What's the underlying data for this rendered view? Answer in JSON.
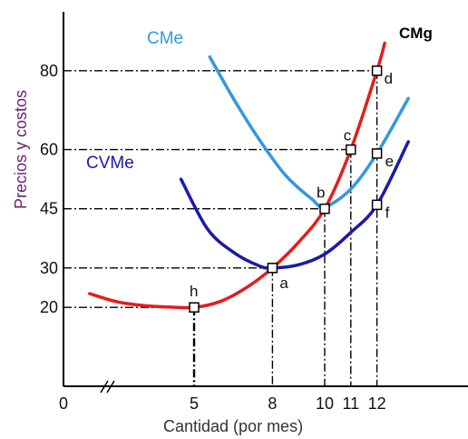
{
  "chart_data": {
    "type": "line",
    "xlabel": "Cantidad (por mes)",
    "ylabel": "Precios y costos",
    "x_ticks": [
      "0",
      "5",
      "8",
      "10",
      "11",
      "12"
    ],
    "y_ticks": [
      "20",
      "30",
      "45",
      "60",
      "80"
    ],
    "series": [
      {
        "name": "CMg",
        "color": "#e41c1c",
        "x": [
          1,
          2,
          3,
          4,
          5,
          6,
          7,
          8,
          9,
          10,
          11,
          12,
          12.3
        ],
        "y": [
          23.5,
          21.5,
          20.5,
          20.1,
          20,
          21.5,
          25,
          30,
          36.5,
          45,
          60,
          80,
          87
        ]
      },
      {
        "name": "CMe",
        "color": "#3399dd",
        "x": [
          5.6,
          6.5,
          7.5,
          8.5,
          9.5,
          10,
          11,
          12,
          13.2
        ],
        "y": [
          83.5,
          73,
          62.5,
          53.5,
          47.5,
          45.5,
          50,
          59,
          73
        ]
      },
      {
        "name": "CVMe",
        "color": "#1a1aaa",
        "x": [
          4.5,
          5.5,
          6.5,
          7.5,
          8,
          9,
          10,
          11,
          12,
          13.2
        ],
        "y": [
          52.5,
          40,
          34,
          30.5,
          30,
          30.8,
          33.5,
          39,
          46,
          62
        ]
      }
    ],
    "points": [
      {
        "label": "h",
        "x": 5,
        "y": 20
      },
      {
        "label": "a",
        "x": 8,
        "y": 30
      },
      {
        "label": "b",
        "x": 10,
        "y": 45
      },
      {
        "label": "c",
        "x": 11,
        "y": 60
      },
      {
        "label": "d",
        "x": 12,
        "y": 80
      },
      {
        "label": "e",
        "x": 12,
        "y": 59
      },
      {
        "label": "f",
        "x": 12,
        "y": 46
      }
    ],
    "xlim": [
      0,
      13.2
    ],
    "ylim": [
      0,
      100
    ],
    "grid": false
  }
}
